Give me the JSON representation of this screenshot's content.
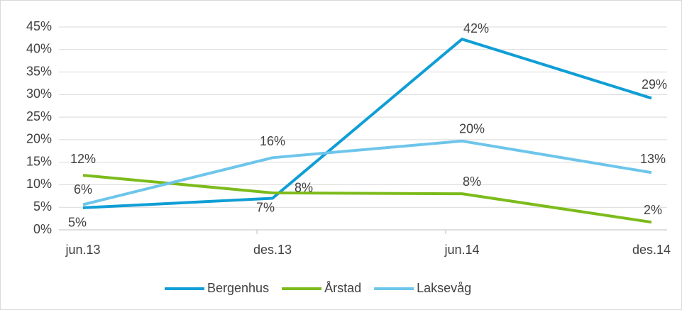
{
  "chart_data": {
    "type": "line",
    "categories": [
      "jun.13",
      "des.13",
      "jun.14",
      "des.14"
    ],
    "series": [
      {
        "name": "Bergenhus",
        "color": "#0f9ed5",
        "values": [
          4.9,
          7,
          42.3,
          29.2
        ],
        "value_labels": [
          "5%",
          "7%",
          "42%",
          "29%"
        ]
      },
      {
        "name": "Årstad",
        "color": "#7cbb1b",
        "values": [
          12.1,
          8.2,
          8,
          1.7
        ],
        "value_labels": [
          "12%",
          "8%",
          "8%",
          "2%"
        ]
      },
      {
        "name": "Laksevåg",
        "color": "#6ec5ea",
        "values": [
          5.6,
          16,
          19.7,
          12.7
        ],
        "value_labels": [
          "6%",
          "16%",
          "20%",
          "13%"
        ]
      }
    ],
    "ylim": [
      0,
      45
    ],
    "yticks": [
      {
        "value": 0,
        "label": "0%"
      },
      {
        "value": 5,
        "label": "5%"
      },
      {
        "value": 10,
        "label": "10%"
      },
      {
        "value": 15,
        "label": "15%"
      },
      {
        "value": 20,
        "label": "20%"
      },
      {
        "value": 25,
        "label": "25%"
      },
      {
        "value": 30,
        "label": "30%"
      },
      {
        "value": 35,
        "label": "35%"
      },
      {
        "value": 40,
        "label": "40%"
      },
      {
        "value": 45,
        "label": "45%"
      }
    ],
    "grid": true,
    "legend": "bottom"
  }
}
